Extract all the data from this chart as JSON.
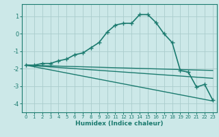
{
  "title": "",
  "xlabel": "Humidex (Indice chaleur)",
  "ylabel": "",
  "background_color": "#cce8e8",
  "grid_color": "#aacccc",
  "line_color": "#1a7a6e",
  "xlim": [
    -0.5,
    23.5
  ],
  "ylim": [
    -4.5,
    1.7
  ],
  "yticks": [
    -4,
    -3,
    -2,
    -1,
    0,
    1
  ],
  "xticks": [
    0,
    1,
    2,
    3,
    4,
    5,
    6,
    7,
    8,
    9,
    10,
    11,
    12,
    13,
    14,
    15,
    16,
    17,
    18,
    19,
    20,
    21,
    22,
    23
  ],
  "series": [
    {
      "x": [
        0,
        1,
        2,
        3,
        4,
        5,
        6,
        7,
        8,
        9,
        10,
        11,
        12,
        13,
        14,
        15,
        16,
        17,
        18,
        19,
        20,
        21,
        22,
        23
      ],
      "y": [
        -1.8,
        -1.8,
        -1.7,
        -1.7,
        -1.55,
        -1.45,
        -1.2,
        -1.1,
        -0.8,
        -0.5,
        0.1,
        0.5,
        0.6,
        0.6,
        1.1,
        1.1,
        0.65,
        0.0,
        -0.5,
        -2.1,
        -2.2,
        -3.05,
        -2.9,
        -3.8
      ],
      "marker": "+",
      "linewidth": 1.2,
      "markersize": 4.5
    },
    {
      "x": [
        0,
        23
      ],
      "y": [
        -1.8,
        -2.1
      ],
      "marker": null,
      "linewidth": 1.0,
      "markersize": 0
    },
    {
      "x": [
        0,
        23
      ],
      "y": [
        -1.8,
        -2.55
      ],
      "marker": null,
      "linewidth": 1.0,
      "markersize": 0
    },
    {
      "x": [
        0,
        23
      ],
      "y": [
        -1.8,
        -3.85
      ],
      "marker": null,
      "linewidth": 1.0,
      "markersize": 0
    }
  ]
}
